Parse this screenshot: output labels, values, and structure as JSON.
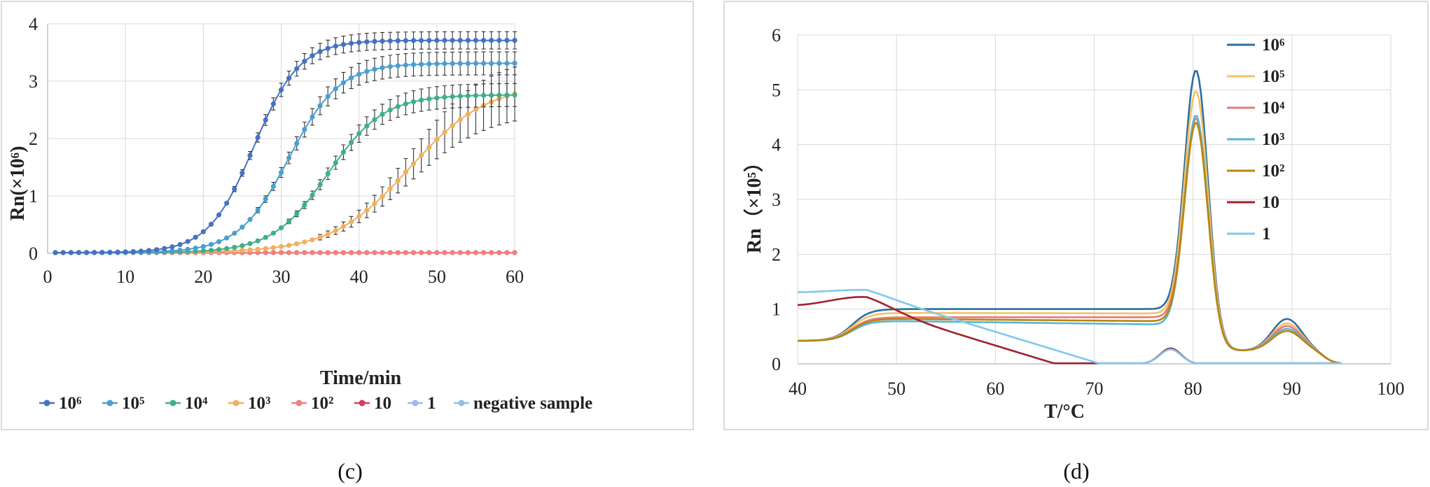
{
  "chart_data": [
    {
      "type": "line",
      "panel_label": "(c)",
      "xlabel": "Time/min",
      "ylabel": "Rn(×10⁶)",
      "xlim": [
        0,
        60
      ],
      "ylim": [
        0,
        4
      ],
      "xticks": [
        "0",
        "10",
        "20",
        "30",
        "40",
        "50",
        "60"
      ],
      "yticks": [
        "0",
        "1",
        "2",
        "3",
        "4"
      ],
      "legend_position": "bottom",
      "series": [
        {
          "name": "10⁶",
          "color": "#4472c4",
          "midpoint": 26.5,
          "steepness": 0.34,
          "plateau": 3.7,
          "error": 0.15
        },
        {
          "name": "10⁵",
          "color": "#4a9fd0",
          "midpoint": 31.0,
          "steepness": 0.31,
          "plateau": 3.3,
          "error": 0.2
        },
        {
          "name": "10⁴",
          "color": "#3fae8c",
          "midpoint": 36.0,
          "steepness": 0.28,
          "plateau": 2.75,
          "error": 0.2
        },
        {
          "name": "10³",
          "color": "#f0b060",
          "midpoint": 46.5,
          "steepness": 0.2,
          "plateau": 2.95,
          "error": 0.5
        },
        {
          "name": "10²",
          "color": "#f08080",
          "midpoint": null,
          "plateau": 0
        },
        {
          "name": "10",
          "color": "#d04060",
          "midpoint": null,
          "plateau": 0
        },
        {
          "name": "1",
          "color": "#a8b4ec",
          "midpoint": null,
          "plateau": 0
        },
        {
          "name": "negative sample",
          "color": "#8ec0e8",
          "midpoint": null,
          "plateau": 0
        }
      ]
    },
    {
      "type": "line",
      "panel_label": "(d)",
      "xlabel": "T/°C",
      "ylabel": "Rn（×10⁵）",
      "xlim": [
        40,
        100
      ],
      "ylim": [
        0,
        6
      ],
      "xticks": [
        "40",
        "50",
        "60",
        "70",
        "80",
        "90",
        "100"
      ],
      "yticks": [
        "0",
        "1",
        "2",
        "3",
        "4",
        "5",
        "6"
      ],
      "legend_position": "top-right",
      "series": [
        {
          "name": "10⁶",
          "color": "#2e6e9e",
          "baseline": 1.0,
          "peak": 5.38,
          "p2": 0.58,
          "sh": 1.0
        },
        {
          "name": "10⁵",
          "color": "#f5c266",
          "baseline": 0.92,
          "peak": 5.0,
          "p2": 0.5,
          "sh": 0.93
        },
        {
          "name": "10⁴",
          "color": "#e87878",
          "baseline": 0.85,
          "peak": 4.5,
          "p2": 0.45,
          "sh": 0.85
        },
        {
          "name": "10³",
          "color": "#5ab4d8",
          "baseline": 0.72,
          "peak": 4.55,
          "p2": 0.4,
          "sh": 0.78
        },
        {
          "name": "10²",
          "color": "#b8860b",
          "baseline": 0.78,
          "peak": 4.42,
          "p2": 0.36,
          "sh": 0.82
        },
        {
          "name": "10",
          "color": "#a02030",
          "baseline": null,
          "peak": 0.3,
          "start": 1.05,
          "hump": 1.22
        },
        {
          "name": "1",
          "color": "#80c8ec",
          "baseline": null,
          "peak": 0.28,
          "start": 1.3,
          "hump": 1.35
        }
      ]
    }
  ]
}
